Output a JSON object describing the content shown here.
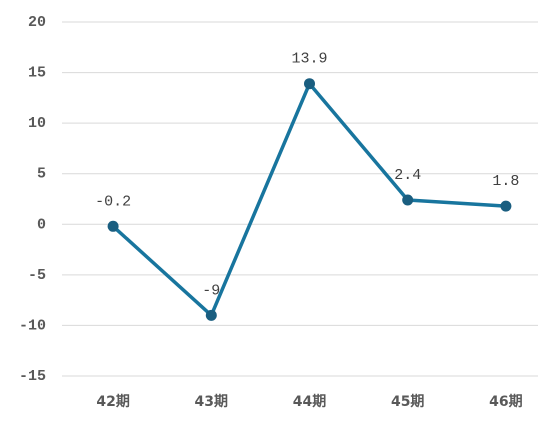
{
  "chart_data": {
    "type": "line",
    "categories": [
      "42期",
      "43期",
      "44期",
      "45期",
      "46期"
    ],
    "values": [
      -0.2,
      -9,
      13.9,
      2.4,
      1.8
    ],
    "color": "#18759e",
    "marker_color": "#1a5e80",
    "ylim": [
      -15,
      20
    ],
    "yticks": [
      -15,
      -10,
      -5,
      0,
      5,
      10,
      15,
      20
    ],
    "grid": true
  }
}
